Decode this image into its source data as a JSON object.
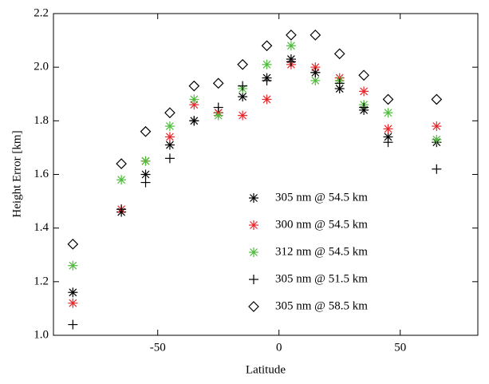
{
  "chart_data": {
    "type": "scatter",
    "xlabel": "Latitude",
    "ylabel": "Height Error [km]",
    "x": [
      -85,
      -65,
      -55,
      -45,
      -35,
      -25,
      -15,
      -5,
      5,
      15,
      25,
      35,
      45,
      65
    ],
    "xlim": [
      -93,
      82
    ],
    "xticks": [
      -50,
      0,
      50
    ],
    "ylim": [
      1.0,
      2.2
    ],
    "yticks": [
      {
        "value": 1.0,
        "label": "1.0"
      },
      1.2,
      1.4,
      1.6,
      1.8,
      {
        "value": 2.0,
        "label": "2.0"
      },
      2.2
    ],
    "legend": "bottom",
    "series": [
      {
        "name": "305 nm @ 54.5 km",
        "color": "#000000",
        "marker": "asterisk",
        "values": [
          1.16,
          1.46,
          1.6,
          1.71,
          1.8,
          1.83,
          1.89,
          1.96,
          2.03,
          1.98,
          1.92,
          1.84,
          1.74,
          1.72
        ]
      },
      {
        "name": "300 nm @ 54.5 km",
        "color": "#e8262a",
        "marker": "asterisk",
        "values": [
          1.12,
          1.47,
          1.65,
          1.74,
          1.86,
          1.83,
          1.82,
          1.88,
          2.01,
          2.0,
          1.96,
          1.91,
          1.77,
          1.78
        ]
      },
      {
        "name": "312 nm @ 54.5 km",
        "color": "#4dbb3a",
        "marker": "asterisk",
        "values": [
          1.26,
          1.58,
          1.65,
          1.78,
          1.88,
          1.82,
          1.92,
          2.01,
          2.08,
          1.95,
          1.95,
          1.86,
          1.83,
          1.73
        ]
      },
      {
        "name": "305 nm @ 51.5 km",
        "color": "#000000",
        "marker": "plus",
        "values": [
          1.04,
          1.47,
          1.57,
          1.66,
          1.8,
          1.85,
          1.93,
          1.95,
          2.02,
          1.98,
          1.94,
          1.85,
          1.72,
          1.62
        ]
      },
      {
        "name": "305 nm @ 58.5 km",
        "color": "#000000",
        "marker": "diamond",
        "values": [
          1.34,
          1.64,
          1.76,
          1.83,
          1.93,
          1.94,
          2.01,
          2.08,
          2.12,
          2.12,
          2.05,
          1.97,
          1.88,
          1.88
        ]
      }
    ]
  }
}
